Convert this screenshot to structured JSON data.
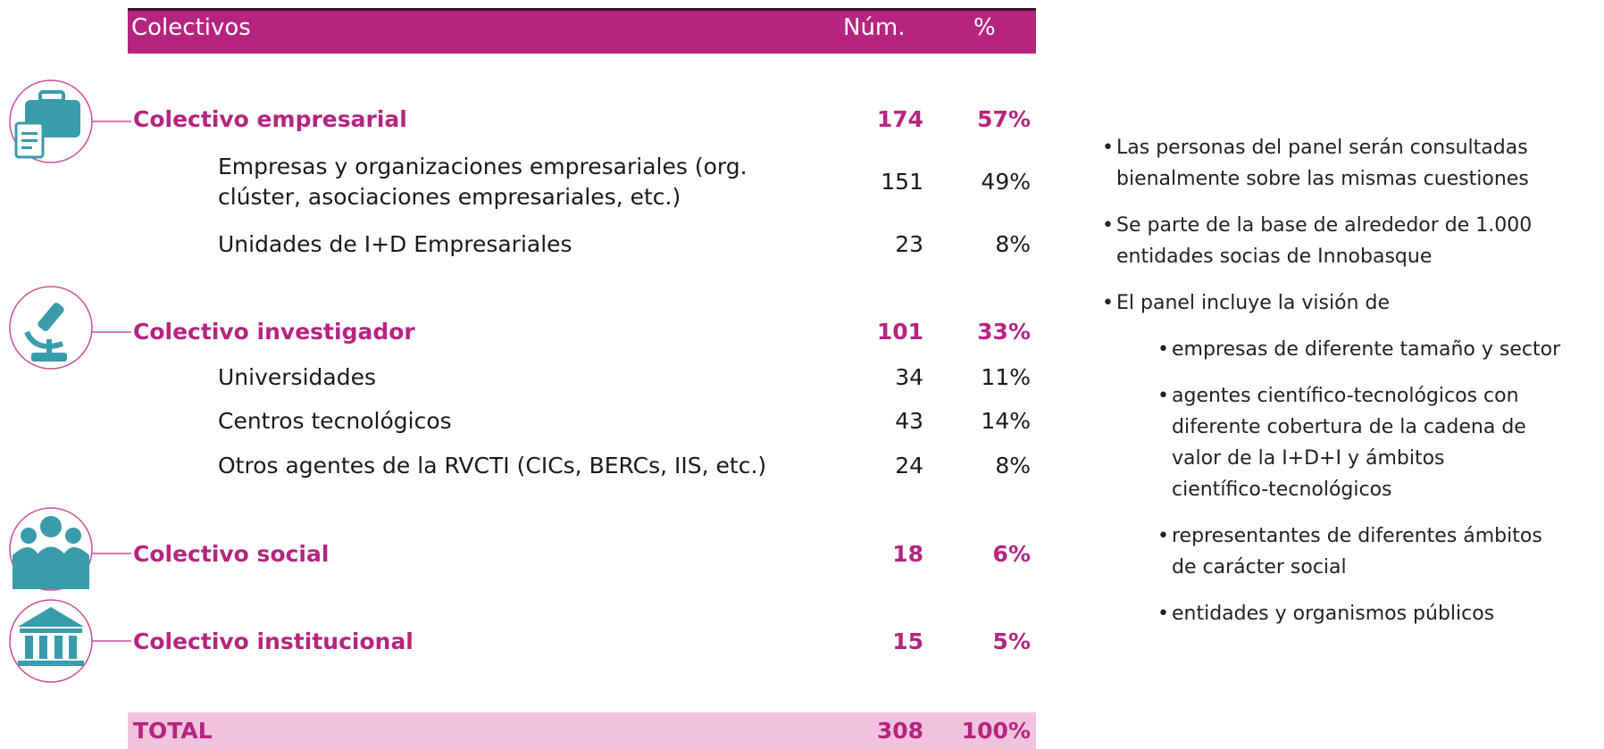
{
  "table": {
    "header": [
      "Colectivos",
      "Núm.",
      "%"
    ],
    "groups": [
      {
        "label": "Colectivo empresarial",
        "num": "174",
        "pct": "57%",
        "items": [
          {
            "label": "Empresas y organizaciones empresariales (org. clúster, asociaciones empresariales, etc.)",
            "num": "151",
            "pct": "49%"
          },
          {
            "label": "Unidades de I+D Empresariales",
            "num": "23",
            "pct": "8%"
          }
        ]
      },
      {
        "label": "Colectivo investigador",
        "num": "101",
        "pct": "33%",
        "items": [
          {
            "label": "Universidades",
            "num": "34",
            "pct": "11%"
          },
          {
            "label": "Centros tecnológicos",
            "num": "43",
            "pct": "14%"
          },
          {
            "label": "Otros agentes de la RVCTI (CICs, BERCs, IIS, etc.)",
            "num": "24",
            "pct": "8%"
          }
        ]
      },
      {
        "label": "Colectivo social",
        "num": "18",
        "pct": "6%",
        "items": []
      },
      {
        "label": "Colectivo institucional",
        "num": "15",
        "pct": "5%",
        "items": []
      }
    ],
    "total": {
      "label": "TOTAL",
      "num": "308",
      "pct": "100%"
    }
  },
  "bullets": [
    {
      "text": "Las personas del panel serán consultadas bienalmente sobre las mismas cuestiones"
    },
    {
      "text": "Se parte de la base de alrededor de 1.000 entidades socias de Innobasque"
    },
    {
      "text": "El panel incluye la visión de",
      "items": [
        "empresas de diferente tamaño y sector",
        "agentes científico-tecnológicos con diferente cobertura de la cadena de valor de la I+D+I y ámbitos científico-tecnológicos",
        "representantes de diferentes ámbitos de carácter social",
        "entidades y organismos públicos"
      ]
    }
  ]
}
